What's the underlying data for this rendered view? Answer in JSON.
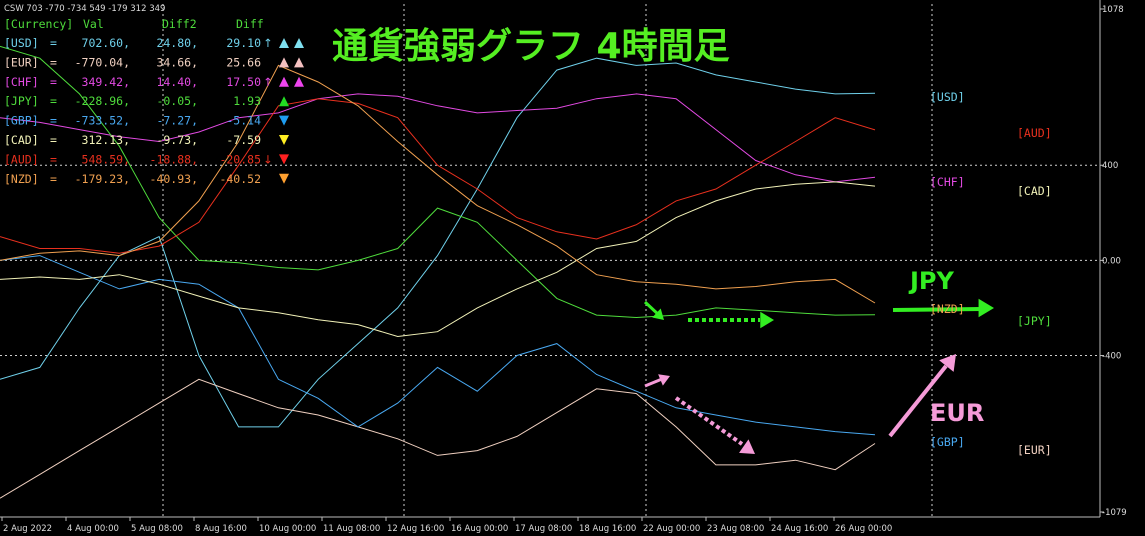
{
  "header_text": "CSW 703 -770 -734 549 -179 312 349",
  "title": "通貨強弱グラフ 4時間足",
  "table": {
    "header": [
      "[Currency]",
      "Val",
      "Diff2",
      "Diff"
    ],
    "rows": [
      {
        "code": "[USD]",
        "val": "702.60,",
        "diff2": "24.80,",
        "diff": "29.10",
        "arrow": "↑",
        "color": "#6fd0ea",
        "tri1": "up",
        "tri2": "up",
        "tri_color": "#7fe0f0"
      },
      {
        "code": "[EUR]",
        "val": "-770.04,",
        "diff2": "34.66,",
        "diff": "25.66",
        "arrow": "",
        "color": "#f0d0c0",
        "tri1": "up",
        "tri2": "up",
        "tri_color": "#f4c0c0"
      },
      {
        "code": "[CHF]",
        "val": "349.42,",
        "diff2": "14.40,",
        "diff": "17.50",
        "arrow": "↑",
        "color": "#e24ae2",
        "tri1": "up",
        "tri2": "up",
        "tri_color": "#ee44ee"
      },
      {
        "code": "[JPY]",
        "val": "-228.96,",
        "diff2": "-0.05,",
        "diff": "1.93",
        "arrow": "",
        "color": "#4fdc3c",
        "tri1": "up",
        "tri2": "",
        "tri_color": "#22dd22"
      },
      {
        "code": "[GBP]",
        "val": "-733.52,",
        "diff2": "-7.27,",
        "diff": "-5.14",
        "arrow": "",
        "color": "#49a8f0",
        "tri1": "down",
        "tri2": "",
        "tri_color": "#1e9cf0"
      },
      {
        "code": "[CAD]",
        "val": "312.13,",
        "diff2": "-9.73,",
        "diff": "-7.59",
        "arrow": "",
        "color": "#f2f2b8",
        "tri1": "down",
        "tri2": "",
        "tri_color": "#ffee22"
      },
      {
        "code": "[AUD]",
        "val": "548.59,",
        "diff2": "-18.88,",
        "diff": "-20.85",
        "arrow": "↓",
        "color": "#e8301e",
        "tri1": "down",
        "tri2": "",
        "tri_color": "#ff2020"
      },
      {
        "code": "[NZD]",
        "val": "-179.23,",
        "diff2": "-40.93,",
        "diff": "-40.52",
        "arrow": "",
        "color": "#f0a050",
        "tri1": "down",
        "tri2": "",
        "tri_color": "#ffa030"
      }
    ]
  },
  "right_labels": [
    {
      "text": "[USD]",
      "y": 702.6,
      "color": "#6fd0ea",
      "col": 0
    },
    {
      "text": "[AUD]",
      "y": 548.59,
      "color": "#e8301e",
      "col": 1
    },
    {
      "text": "[CHF]",
      "y": 349.42,
      "color": "#e24ae2",
      "col": 0
    },
    {
      "text": "[CAD]",
      "y": 312.13,
      "color": "#f2f2b8",
      "col": 1
    },
    {
      "text": "[NZD]",
      "y": -179.23,
      "color": "#f0a050",
      "col": 0
    },
    {
      "text": "[JPY]",
      "y": -228.96,
      "color": "#4fdc3c",
      "col": 1
    },
    {
      "text": "[GBP]",
      "y": -733.52,
      "color": "#49a8f0",
      "col": 0
    },
    {
      "text": "[EUR]",
      "y": -770.04,
      "color": "#f0d0c0",
      "col": 1
    }
  ],
  "annotations": {
    "jpy_label": "JPY",
    "eur_label": "EUR",
    "jpy_color": "#33ee22",
    "eur_color": "#f59bd8"
  },
  "chart_data": {
    "type": "line",
    "title": "通貨強弱グラフ 4時間足",
    "ylim": [
      -1079,
      1078
    ],
    "y_ticks": [
      "1078",
      "400",
      "0.00",
      "-400",
      "-1079"
    ],
    "x_tick_labels": [
      "2 Aug 2022",
      "4 Aug 00:00",
      "5 Aug 08:00",
      "8 Aug 16:00",
      "10 Aug 00:00",
      "11 Aug 08:00",
      "12 Aug 16:00",
      "16 Aug 00:00",
      "17 Aug 08:00",
      "18 Aug 16:00",
      "22 Aug 00:00",
      "23 Aug 08:00",
      "24 Aug 16:00",
      "26 Aug 00:00"
    ],
    "x_count": 23,
    "grid": true,
    "series": [
      {
        "name": "USD",
        "color": "#6fd0ea",
        "values": [
          -500,
          -450,
          -200,
          20,
          100,
          -400,
          -700,
          -700,
          -500,
          -350,
          -200,
          20,
          300,
          600,
          800,
          850,
          820,
          830,
          780,
          750,
          720,
          700,
          702.6
        ]
      },
      {
        "name": "EUR",
        "color": "#f0d0c0",
        "values": [
          -1000,
          -900,
          -800,
          -700,
          -600,
          -500,
          -560,
          -620,
          -650,
          -700,
          -750,
          -820,
          -800,
          -740,
          -640,
          -540,
          -560,
          -700,
          -860,
          -860,
          -840,
          -880,
          -770.04
        ]
      },
      {
        "name": "CHF",
        "color": "#e24ae2",
        "values": [
          600,
          580,
          550,
          520,
          500,
          540,
          600,
          620,
          680,
          700,
          690,
          650,
          620,
          630,
          640,
          680,
          700,
          680,
          550,
          420,
          360,
          330,
          349.42
        ]
      },
      {
        "name": "JPY",
        "color": "#4fdc3c",
        "values": [
          900,
          850,
          700,
          480,
          180,
          0,
          -10,
          -30,
          -40,
          0,
          50,
          220,
          160,
          0,
          -160,
          -230,
          -240,
          -230,
          -200,
          -210,
          -220,
          -230,
          -228.96
        ]
      },
      {
        "name": "GBP",
        "color": "#49a8f0",
        "values": [
          0,
          20,
          -50,
          -120,
          -80,
          -100,
          -200,
          -500,
          -580,
          -700,
          -600,
          -450,
          -550,
          -400,
          -350,
          -480,
          -550,
          -620,
          -650,
          -680,
          -700,
          -720,
          -733.52
        ]
      },
      {
        "name": "CAD",
        "color": "#f2f2b8",
        "values": [
          -80,
          -70,
          -80,
          -60,
          -100,
          -150,
          -200,
          -220,
          -250,
          -270,
          -320,
          -300,
          -200,
          -120,
          -50,
          50,
          80,
          180,
          250,
          300,
          320,
          330,
          312.13
        ]
      },
      {
        "name": "AUD",
        "color": "#e8301e",
        "values": [
          100,
          50,
          50,
          30,
          60,
          160,
          400,
          650,
          680,
          660,
          600,
          400,
          300,
          180,
          120,
          90,
          150,
          250,
          300,
          400,
          500,
          600,
          548.59
        ]
      },
      {
        "name": "NZD",
        "color": "#f0a050",
        "values": [
          0,
          30,
          40,
          20,
          80,
          250,
          500,
          820,
          750,
          650,
          500,
          360,
          230,
          150,
          60,
          -60,
          -90,
          -100,
          -120,
          -110,
          -90,
          -80,
          -179.23
        ]
      }
    ]
  }
}
